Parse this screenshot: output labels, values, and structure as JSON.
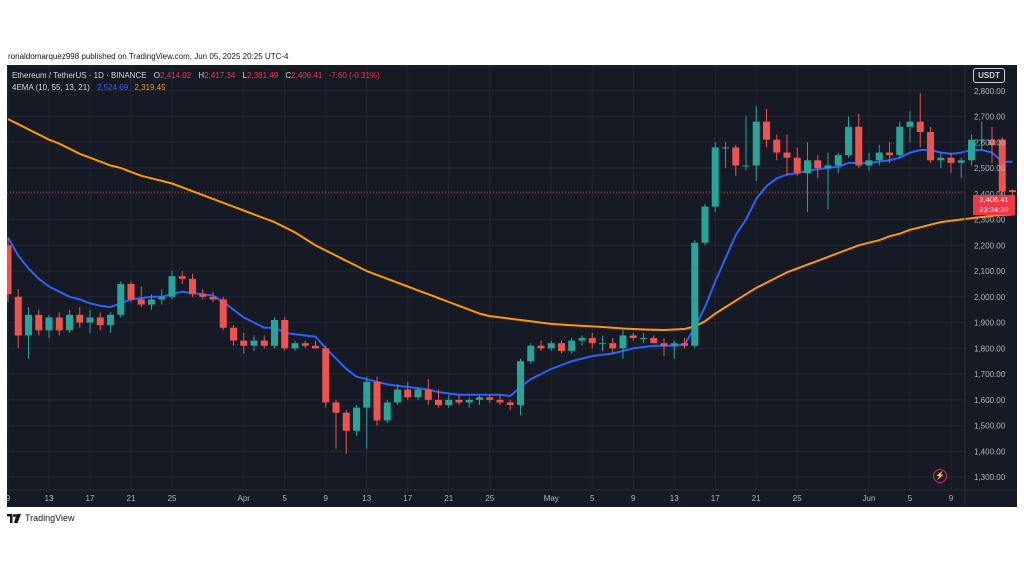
{
  "publisher_line": "ronaldomarquez998 published on TradingView.com, Jun 05, 2025 20:25 UTC-4",
  "footer_brand": "TradingView",
  "currency_button": "USDT",
  "legend": {
    "symbol": "Ethereum / TetherUS · 1D · BINANCE",
    "open_label": "O",
    "open": "2,414.02",
    "high_label": "H",
    "high": "2,417.34",
    "low_label": "L",
    "low": "2,381.49",
    "close_label": "C",
    "close": "2,406.41",
    "change": "-7.60 (-0.31%)",
    "indicator_name": "4EMA (10, 55, 13, 21)",
    "ema_fast_value": "2,524.69",
    "ema_slow_value": "2,319.45"
  },
  "last_price": {
    "value": "2,406.41",
    "countdown": "23:34:30"
  },
  "colors": {
    "background": "#161a25",
    "grid": "#232632",
    "up": "#26a69a",
    "down": "#ef5350",
    "ema_fast": "#2962ff",
    "ema_slow": "#ff9800",
    "axis_text": "#b2b5be"
  },
  "chart_data": {
    "type": "candlestick",
    "y_axis": {
      "min": 1250,
      "max": 2900,
      "ticks": [
        "1,300.00",
        "1,400.00",
        "1,500.00",
        "1,600.00",
        "1,700.00",
        "1,800.00",
        "1,900.00",
        "2,000.00",
        "2,100.00",
        "2,200.00",
        "2,300.00",
        "2,400.00",
        "2,500.00",
        "2,600.00",
        "2,700.00",
        "2,800.00"
      ],
      "tick_values": [
        1300,
        1400,
        1500,
        1600,
        1700,
        1800,
        1900,
        2000,
        2100,
        2200,
        2300,
        2400,
        2500,
        2600,
        2700,
        2800
      ]
    },
    "x_axis": {
      "labels": [
        "9",
        "13",
        "17",
        "21",
        "25",
        "Apr",
        "5",
        "9",
        "13",
        "17",
        "21",
        "25",
        "May",
        "5",
        "9",
        "13",
        "17",
        "21",
        "25",
        "Jun",
        "5",
        "9"
      ],
      "label_index": [
        0,
        4,
        8,
        12,
        16,
        23,
        27,
        31,
        35,
        39,
        43,
        47,
        53,
        57,
        61,
        65,
        69,
        73,
        77,
        84,
        88,
        92
      ]
    },
    "candles": [
      {
        "o": 2200,
        "h": 2230,
        "l": 1980,
        "c": 2010
      },
      {
        "o": 2000,
        "h": 2030,
        "l": 1800,
        "c": 1850
      },
      {
        "o": 1850,
        "h": 1960,
        "l": 1760,
        "c": 1930
      },
      {
        "o": 1930,
        "h": 1950,
        "l": 1850,
        "c": 1870
      },
      {
        "o": 1870,
        "h": 1930,
        "l": 1840,
        "c": 1920
      },
      {
        "o": 1920,
        "h": 1940,
        "l": 1850,
        "c": 1870
      },
      {
        "o": 1870,
        "h": 1950,
        "l": 1860,
        "c": 1930
      },
      {
        "o": 1930,
        "h": 1960,
        "l": 1880,
        "c": 1900
      },
      {
        "o": 1900,
        "h": 1950,
        "l": 1860,
        "c": 1920
      },
      {
        "o": 1920,
        "h": 1940,
        "l": 1870,
        "c": 1890
      },
      {
        "o": 1890,
        "h": 1940,
        "l": 1860,
        "c": 1930
      },
      {
        "o": 1930,
        "h": 2060,
        "l": 1920,
        "c": 2050
      },
      {
        "o": 2050,
        "h": 2060,
        "l": 1980,
        "c": 1990
      },
      {
        "o": 1990,
        "h": 2040,
        "l": 1960,
        "c": 1970
      },
      {
        "o": 1970,
        "h": 2010,
        "l": 1950,
        "c": 1990
      },
      {
        "o": 1990,
        "h": 2030,
        "l": 1970,
        "c": 2000
      },
      {
        "o": 2000,
        "h": 2100,
        "l": 1990,
        "c": 2080
      },
      {
        "o": 2080,
        "h": 2100,
        "l": 2050,
        "c": 2070
      },
      {
        "o": 2070,
        "h": 2090,
        "l": 2000,
        "c": 2010
      },
      {
        "o": 2010,
        "h": 2030,
        "l": 1990,
        "c": 2000
      },
      {
        "o": 2000,
        "h": 2020,
        "l": 1980,
        "c": 1990
      },
      {
        "o": 1990,
        "h": 2000,
        "l": 1870,
        "c": 1880
      },
      {
        "o": 1880,
        "h": 1890,
        "l": 1810,
        "c": 1830
      },
      {
        "o": 1830,
        "h": 1860,
        "l": 1780,
        "c": 1810
      },
      {
        "o": 1810,
        "h": 1850,
        "l": 1790,
        "c": 1830
      },
      {
        "o": 1830,
        "h": 1850,
        "l": 1800,
        "c": 1810
      },
      {
        "o": 1810,
        "h": 1920,
        "l": 1800,
        "c": 1910
      },
      {
        "o": 1910,
        "h": 1920,
        "l": 1790,
        "c": 1800
      },
      {
        "o": 1800,
        "h": 1830,
        "l": 1790,
        "c": 1820
      },
      {
        "o": 1820,
        "h": 1830,
        "l": 1800,
        "c": 1810
      },
      {
        "o": 1810,
        "h": 1830,
        "l": 1800,
        "c": 1800
      },
      {
        "o": 1800,
        "h": 1810,
        "l": 1570,
        "c": 1590
      },
      {
        "o": 1590,
        "h": 1600,
        "l": 1410,
        "c": 1550
      },
      {
        "o": 1550,
        "h": 1560,
        "l": 1390,
        "c": 1480
      },
      {
        "o": 1480,
        "h": 1580,
        "l": 1460,
        "c": 1570
      },
      {
        "o": 1570,
        "h": 1690,
        "l": 1410,
        "c": 1670
      },
      {
        "o": 1670,
        "h": 1690,
        "l": 1500,
        "c": 1520
      },
      {
        "o": 1520,
        "h": 1600,
        "l": 1510,
        "c": 1590
      },
      {
        "o": 1590,
        "h": 1660,
        "l": 1580,
        "c": 1640
      },
      {
        "o": 1640,
        "h": 1670,
        "l": 1600,
        "c": 1610
      },
      {
        "o": 1610,
        "h": 1650,
        "l": 1600,
        "c": 1640
      },
      {
        "o": 1640,
        "h": 1680,
        "l": 1580,
        "c": 1600
      },
      {
        "o": 1600,
        "h": 1640,
        "l": 1570,
        "c": 1580
      },
      {
        "o": 1580,
        "h": 1620,
        "l": 1570,
        "c": 1600
      },
      {
        "o": 1600,
        "h": 1620,
        "l": 1580,
        "c": 1590
      },
      {
        "o": 1590,
        "h": 1610,
        "l": 1570,
        "c": 1600
      },
      {
        "o": 1600,
        "h": 1620,
        "l": 1580,
        "c": 1610
      },
      {
        "o": 1610,
        "h": 1620,
        "l": 1590,
        "c": 1600
      },
      {
        "o": 1600,
        "h": 1620,
        "l": 1580,
        "c": 1590
      },
      {
        "o": 1590,
        "h": 1600,
        "l": 1560,
        "c": 1580
      },
      {
        "o": 1580,
        "h": 1760,
        "l": 1540,
        "c": 1750
      },
      {
        "o": 1750,
        "h": 1820,
        "l": 1740,
        "c": 1810
      },
      {
        "o": 1810,
        "h": 1830,
        "l": 1790,
        "c": 1800
      },
      {
        "o": 1800,
        "h": 1830,
        "l": 1790,
        "c": 1820
      },
      {
        "o": 1820,
        "h": 1830,
        "l": 1780,
        "c": 1790
      },
      {
        "o": 1790,
        "h": 1840,
        "l": 1780,
        "c": 1830
      },
      {
        "o": 1830,
        "h": 1850,
        "l": 1810,
        "c": 1840
      },
      {
        "o": 1840,
        "h": 1860,
        "l": 1800,
        "c": 1820
      },
      {
        "o": 1820,
        "h": 1850,
        "l": 1790,
        "c": 1820
      },
      {
        "o": 1820,
        "h": 1840,
        "l": 1780,
        "c": 1800
      },
      {
        "o": 1800,
        "h": 1870,
        "l": 1760,
        "c": 1850
      },
      {
        "o": 1850,
        "h": 1860,
        "l": 1830,
        "c": 1840
      },
      {
        "o": 1840,
        "h": 1860,
        "l": 1820,
        "c": 1840
      },
      {
        "o": 1840,
        "h": 1850,
        "l": 1820,
        "c": 1820
      },
      {
        "o": 1820,
        "h": 1840,
        "l": 1770,
        "c": 1810
      },
      {
        "o": 1810,
        "h": 1830,
        "l": 1760,
        "c": 1820
      },
      {
        "o": 1820,
        "h": 1840,
        "l": 1800,
        "c": 1810
      },
      {
        "o": 1810,
        "h": 2220,
        "l": 1800,
        "c": 2210
      },
      {
        "o": 2210,
        "h": 2360,
        "l": 2200,
        "c": 2350
      },
      {
        "o": 2350,
        "h": 2600,
        "l": 2330,
        "c": 2580
      },
      {
        "o": 2580,
        "h": 2600,
        "l": 2500,
        "c": 2580
      },
      {
        "o": 2580,
        "h": 2590,
        "l": 2470,
        "c": 2510
      },
      {
        "o": 2510,
        "h": 2700,
        "l": 2490,
        "c": 2510
      },
      {
        "o": 2510,
        "h": 2740,
        "l": 2450,
        "c": 2680
      },
      {
        "o": 2680,
        "h": 2730,
        "l": 2580,
        "c": 2610
      },
      {
        "o": 2610,
        "h": 2630,
        "l": 2530,
        "c": 2560
      },
      {
        "o": 2560,
        "h": 2630,
        "l": 2470,
        "c": 2540
      },
      {
        "o": 2540,
        "h": 2580,
        "l": 2470,
        "c": 2480
      },
      {
        "o": 2480,
        "h": 2600,
        "l": 2330,
        "c": 2530
      },
      {
        "o": 2530,
        "h": 2550,
        "l": 2460,
        "c": 2500
      },
      {
        "o": 2500,
        "h": 2560,
        "l": 2340,
        "c": 2510
      },
      {
        "o": 2510,
        "h": 2560,
        "l": 2480,
        "c": 2550
      },
      {
        "o": 2550,
        "h": 2700,
        "l": 2540,
        "c": 2660
      },
      {
        "o": 2660,
        "h": 2710,
        "l": 2500,
        "c": 2510
      },
      {
        "o": 2510,
        "h": 2560,
        "l": 2490,
        "c": 2530
      },
      {
        "o": 2530,
        "h": 2590,
        "l": 2510,
        "c": 2560
      },
      {
        "o": 2560,
        "h": 2600,
        "l": 2520,
        "c": 2550
      },
      {
        "o": 2550,
        "h": 2680,
        "l": 2540,
        "c": 2660
      },
      {
        "o": 2660,
        "h": 2720,
        "l": 2600,
        "c": 2680
      },
      {
        "o": 2680,
        "h": 2790,
        "l": 2580,
        "c": 2640
      },
      {
        "o": 2640,
        "h": 2660,
        "l": 2520,
        "c": 2530
      },
      {
        "o": 2530,
        "h": 2560,
        "l": 2500,
        "c": 2540
      },
      {
        "o": 2540,
        "h": 2560,
        "l": 2480,
        "c": 2520
      },
      {
        "o": 2520,
        "h": 2540,
        "l": 2460,
        "c": 2530
      },
      {
        "o": 2530,
        "h": 2630,
        "l": 2510,
        "c": 2610
      },
      {
        "o": 2610,
        "h": 2680,
        "l": 2570,
        "c": 2610
      },
      {
        "o": 2610,
        "h": 2660,
        "l": 2520,
        "c": 2590
      },
      {
        "o": 2610,
        "h": 2620,
        "l": 2380,
        "c": 2410
      },
      {
        "o": 2414.02,
        "h": 2417.34,
        "l": 2381.49,
        "c": 2406.41
      }
    ],
    "series": [
      {
        "name": "4EMA (10, 55, 13, 21)",
        "values": [
          2230,
          2160,
          2110,
          2070,
          2040,
          2020,
          2000,
          1990,
          1975,
          1965,
          1960,
          1975,
          1990,
          1995,
          2000,
          2000,
          2010,
          2020,
          2015,
          2010,
          2005,
          1980,
          1950,
          1920,
          1900,
          1880,
          1880,
          1860,
          1855,
          1850,
          1845,
          1800,
          1760,
          1720,
          1690,
          1680,
          1670,
          1660,
          1655,
          1650,
          1645,
          1640,
          1630,
          1625,
          1620,
          1620,
          1620,
          1620,
          1620,
          1615,
          1650,
          1680,
          1700,
          1720,
          1735,
          1750,
          1760,
          1770,
          1775,
          1780,
          1790,
          1800,
          1805,
          1810,
          1810,
          1810,
          1815,
          1880,
          1960,
          2060,
          2150,
          2240,
          2300,
          2380,
          2430,
          2460,
          2475,
          2480,
          2490,
          2495,
          2500,
          2505,
          2520,
          2520,
          2520,
          2525,
          2530,
          2540,
          2560,
          2570,
          2570,
          2560,
          2555,
          2560,
          2570,
          2570,
          2560,
          2525,
          2524.69
        ]
      },
      {
        "name": "4EMA (10, 55, 13, 21)",
        "values": [
          2690,
          2670,
          2650,
          2630,
          2610,
          2595,
          2575,
          2555,
          2540,
          2525,
          2510,
          2500,
          2485,
          2470,
          2460,
          2450,
          2440,
          2425,
          2410,
          2395,
          2380,
          2365,
          2350,
          2335,
          2320,
          2305,
          2290,
          2270,
          2250,
          2225,
          2200,
          2180,
          2160,
          2140,
          2120,
          2100,
          2085,
          2070,
          2055,
          2040,
          2025,
          2010,
          1995,
          1980,
          1965,
          1950,
          1935,
          1925,
          1920,
          1915,
          1910,
          1905,
          1900,
          1895,
          1892,
          1890,
          1887,
          1885,
          1883,
          1880,
          1877,
          1875,
          1873,
          1872,
          1871,
          1873,
          1875,
          1885,
          1905,
          1935,
          1960,
          1985,
          2010,
          2035,
          2055,
          2075,
          2095,
          2110,
          2125,
          2140,
          2155,
          2170,
          2185,
          2200,
          2210,
          2220,
          2235,
          2245,
          2260,
          2270,
          2280,
          2290,
          2295,
          2300,
          2305,
          2310,
          2315,
          2318,
          2319.45
        ]
      }
    ]
  }
}
